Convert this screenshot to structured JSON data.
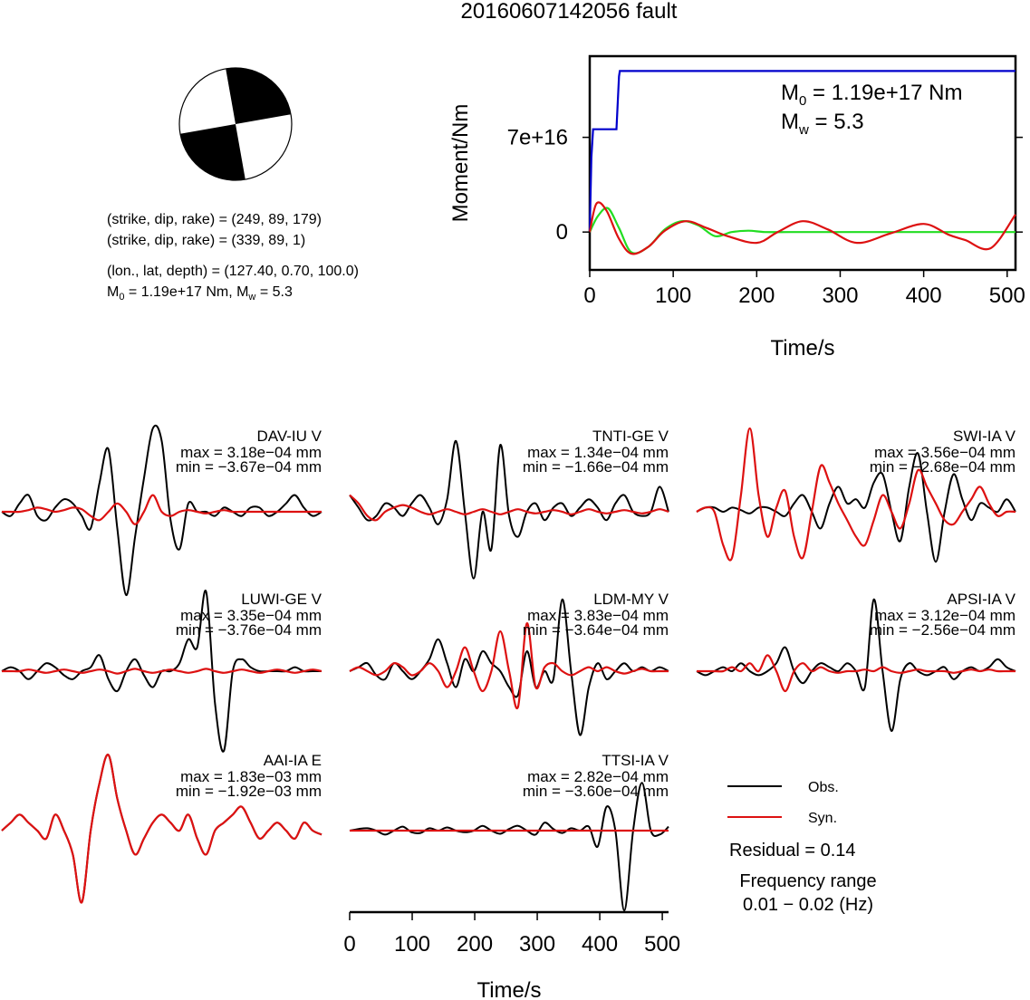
{
  "title": "20160607142056 fault",
  "mechanism": {
    "line1": "(strike, dip, rake) = (249, 89, 179)",
    "line2": "(strike, dip, rake) = (339, 89, 1)",
    "line3": "(lon., lat, depth) = (127.40, 0.70, 100.0)",
    "line4_m0": "M",
    "line4_m0_sub": "0",
    "line4_rest1": " = 1.19e+17 Nm, M",
    "line4_mw_sub": "w",
    "line4_rest2": " = 5.3"
  },
  "moment_plot": {
    "m0_prefix": "M",
    "m0_sub": "0",
    "m0_value": " = 1.19e+17 Nm",
    "mw_prefix": "M",
    "mw_sub": "w",
    "mw_value": " = 5.3"
  },
  "legend": {
    "obs": "Obs.",
    "syn": "Syn.",
    "residual": "Residual = 0.14",
    "freq_label": "Frequency range",
    "freq_value": "0.01 − 0.02 (Hz)"
  },
  "colors": {
    "observed": "#000000",
    "synthetic": "#dd1111",
    "moment_cumulative": "#0000cc",
    "moment_rate_green": "#22dd22",
    "moment_rate_red": "#dd1111"
  },
  "chart_data": [
    {
      "type": "line",
      "name": "moment_function",
      "xlabel": "Time/s",
      "ylabel": "Moment/Nm",
      "xlim": [
        0,
        510
      ],
      "ylim": [
        -2.8e+16,
        1.3e+17
      ],
      "x_ticks": [
        "0",
        "100",
        "200",
        "300",
        "400",
        "500"
      ],
      "x_tick_values": [
        0,
        100,
        200,
        300,
        400,
        500
      ],
      "y_ticks": [
        "0",
        "7e+16"
      ],
      "y_tick_values": [
        0,
        7e+16
      ],
      "series": [
        {
          "color": "#0000cc",
          "x": [
            0,
            2,
            4,
            32,
            35,
            36,
            510
          ],
          "y": [
            0,
            5.5e+16,
            7.6e+16,
            7.6e+16,
            1.15e+17,
            1.19e+17,
            1.19e+17
          ]
        },
        {
          "color": "#22dd22",
          "x": [
            0,
            10,
            22,
            35,
            50,
            70,
            90,
            110,
            130,
            150,
            170,
            190,
            210,
            240,
            280,
            510
          ],
          "y": [
            0,
            1.2e+16,
            1.75e+16,
            3000000000000000.0,
            -1.5e+16,
            -1.1e+16,
            2000000000000000.0,
            8000000000000000.0,
            5000000000000000.0,
            -3000000000000000.0,
            0.0,
            1000000000000000.0,
            0.0,
            0.0,
            0.0,
            0.0
          ]
        },
        {
          "color": "#dd1111",
          "x": [
            0,
            8,
            20,
            35,
            50,
            70,
            90,
            115,
            140,
            165,
            200,
            225,
            255,
            285,
            320,
            360,
            400,
            430,
            450,
            480,
            510
          ],
          "y": [
            0,
            2.1e+16,
            1.6e+16,
            -5000000000000000.0,
            -1.6e+16,
            -1.1e+16,
            1000000000000000.0,
            8000000000000000.0,
            3000000000000000.0,
            -3000000000000000.0,
            -8000000000000000.0,
            0.0,
            8000000000000000.0,
            2000000000000000.0,
            -8000000000000000.0,
            -1000000000000000.0,
            6000000000000000.0,
            -2000000000000000.0,
            -6000000000000000.0,
            -1.2e+16,
            1.3e+16
          ]
        }
      ]
    },
    {
      "type": "line",
      "name": "waveforms",
      "xlabel": "Time/s",
      "xlim": [
        0,
        510
      ],
      "x_ticks": [
        "0",
        "100",
        "200",
        "300",
        "400",
        "500"
      ],
      "x_tick_values": [
        0,
        100,
        200,
        300,
        400,
        500
      ],
      "panels": [
        {
          "label": "DAV-IU V",
          "max": "max = 3.18e−04 mm",
          "min": "min = −3.67e−04 mm",
          "obs": [
            0,
            -0.05,
            0.1,
            0.2,
            -0.05,
            -0.1,
            0.05,
            0.15,
            0.1,
            -0.05,
            -0.2,
            0.35,
            0.75,
            -0.2,
            -1.0,
            -0.3,
            0.4,
            1.0,
            0.85,
            -0.1,
            -0.45,
            0.1,
            0.0,
            0.0,
            -0.05,
            0.05,
            0.0,
            -0.05,
            0.05,
            0.05,
            -0.05,
            0.0,
            0.1,
            0.2,
            0.05,
            -0.05,
            0.0
          ],
          "syn": [
            0,
            0.0,
            0.0,
            0.02,
            0.05,
            0.03,
            0.0,
            0.02,
            0.05,
            0.03,
            -0.05,
            -0.1,
            0.0,
            0.1,
            0.0,
            -0.15,
            0.0,
            0.2,
            0.0,
            -0.05,
            0.0,
            0.02,
            0.0,
            -0.02,
            0.0,
            0.02,
            0.0,
            0.0,
            0.0,
            0.0,
            0.0,
            0.0,
            0.0,
            0.0,
            0.0,
            0.0,
            0.0
          ]
        },
        {
          "label": "TNTI-GE V",
          "max": "max = 1.34e−04 mm",
          "min": "min = −1.66e−04 mm",
          "obs": [
            0.2,
            0.05,
            -0.1,
            -0.05,
            0.1,
            0.05,
            -0.05,
            0.1,
            0.2,
            0.05,
            -0.15,
            0.15,
            0.85,
            0.0,
            -0.8,
            0.0,
            -0.45,
            0.8,
            -0.05,
            -0.3,
            0.0,
            0.1,
            -0.1,
            0.05,
            0.1,
            -0.05,
            0.05,
            0.15,
            0.05,
            -0.1,
            0.1,
            0.2,
            0.0,
            -0.05,
            0.0,
            0.3,
            0.0
          ],
          "syn": [
            0.2,
            0.1,
            -0.05,
            -0.1,
            0.0,
            0.05,
            0.08,
            0.05,
            0.0,
            -0.03,
            0.0,
            0.03,
            0.0,
            -0.03,
            0.0,
            0.03,
            0.0,
            -0.03,
            0.0,
            0.03,
            0.0,
            -0.02,
            0.0,
            0.02,
            0.0,
            -0.03,
            0.0,
            0.03,
            0.0,
            -0.02,
            0.0,
            0.02,
            0.0,
            -0.02,
            0.0,
            0.03,
            0.0
          ]
        },
        {
          "label": "SWI-IA V",
          "max": "max = 3.56e−04 mm",
          "min": "min = −2.68e−04 mm",
          "obs": [
            0.0,
            0.05,
            0.05,
            0.0,
            0.05,
            0.02,
            -0.02,
            0.05,
            0.05,
            0.0,
            -0.05,
            0.1,
            0.2,
            0.0,
            -0.2,
            0.1,
            0.3,
            0.1,
            0.15,
            0.05,
            0.35,
            0.45,
            0.0,
            -0.35,
            0.3,
            0.7,
            0.0,
            -0.6,
            0.0,
            0.45,
            0.15,
            -0.1,
            0.1,
            0.05,
            0.0,
            0.15,
            0.0
          ],
          "syn": [
            0.0,
            0.05,
            0.0,
            -0.4,
            -0.55,
            0.2,
            1.0,
            0.2,
            -0.3,
            0.05,
            0.25,
            -0.3,
            -0.55,
            0.0,
            0.55,
            0.35,
            0.1,
            -0.1,
            -0.3,
            -0.4,
            -0.1,
            0.2,
            0.0,
            -0.2,
            0.1,
            0.5,
            0.3,
            0.1,
            -0.1,
            -0.15,
            0.0,
            0.15,
            0.3,
            0.1,
            -0.05,
            0.0,
            0.0
          ]
        },
        {
          "label": "LUWI-GE V",
          "max": "max = 3.35e−04 mm",
          "min": "min = −3.76e−04 mm",
          "obs": [
            0.0,
            0.05,
            0.0,
            -0.1,
            0.0,
            0.1,
            0.05,
            -0.05,
            -0.1,
            0.0,
            0.05,
            0.2,
            -0.1,
            -0.25,
            0.0,
            0.15,
            -0.05,
            -0.2,
            0.0,
            0.0,
            0.1,
            0.4,
            0.3,
            1.0,
            -0.4,
            -1.0,
            0.0,
            0.15,
            0.05,
            0.0,
            0.0,
            0.0,
            0.0,
            0.05,
            0.0,
            0.0,
            0.0
          ],
          "syn": [
            0.0,
            0.0,
            0.0,
            0.02,
            0.0,
            -0.02,
            0.0,
            0.02,
            0.0,
            -0.02,
            0.0,
            0.02,
            0.0,
            -0.03,
            0.0,
            0.03,
            0.0,
            -0.02,
            0.0,
            0.02,
            0.0,
            -0.02,
            0.0,
            0.03,
            0.0,
            -0.02,
            0.0,
            0.02,
            0.0,
            -0.02,
            0.0,
            0.02,
            0.0,
            -0.02,
            0.0,
            0.02,
            0.0
          ]
        },
        {
          "label": "LDM-MY V",
          "max": "max = 3.83e−04 mm",
          "min": "min = −3.64e−04 mm",
          "obs": [
            0.0,
            0.05,
            0.1,
            -0.05,
            -0.1,
            0.1,
            0.0,
            -0.1,
            0.0,
            0.15,
            0.4,
            0.1,
            -0.2,
            0.15,
            0.0,
            0.25,
            0.1,
            0.0,
            -0.2,
            -0.3,
            0.25,
            -0.2,
            0.0,
            -0.1,
            0.9,
            0.0,
            -0.8,
            -0.2,
            0.1,
            -0.1,
            0.0,
            0.1,
            0.0,
            0.05,
            0.0,
            0.05,
            0.0
          ],
          "syn": [
            0.0,
            0.05,
            0.0,
            -0.05,
            0.0,
            0.1,
            0.05,
            -0.05,
            0.0,
            0.1,
            0.0,
            -0.2,
            0.0,
            0.3,
            0.0,
            -0.25,
            0.0,
            0.5,
            0.0,
            -0.45,
            0.6,
            -0.2,
            0.05,
            0.1,
            0.0,
            -0.05,
            0.0,
            0.05,
            0.0,
            0.05,
            0.0,
            -0.03,
            0.0,
            0.03,
            0.0,
            0.0,
            0.0
          ]
        },
        {
          "label": "APSI-IA V",
          "max": "max = 3.12e−04 mm",
          "min": "min = −2.56e−04 mm",
          "obs": [
            0.0,
            -0.05,
            0.0,
            0.05,
            0.0,
            0.1,
            0.0,
            -0.05,
            0.0,
            0.1,
            0.3,
            0.0,
            -0.15,
            0.0,
            0.1,
            0.05,
            0.0,
            0.1,
            0.0,
            -0.2,
            0.9,
            0.0,
            -0.75,
            -0.1,
            0.1,
            0.0,
            -0.05,
            0.0,
            0.05,
            -0.1,
            0.0,
            0.05,
            0.0,
            0.05,
            0.15,
            0.05,
            0.0
          ],
          "syn": [
            0.0,
            0.0,
            0.0,
            0.0,
            0.05,
            0.0,
            0.1,
            0.0,
            0.2,
            0.0,
            -0.25,
            0.0,
            0.1,
            0.0,
            0.05,
            0.0,
            -0.02,
            0.0,
            0.0,
            0.02,
            0.0,
            0.05,
            0.0,
            -0.02,
            0.0,
            0.02,
            0.0,
            0.0,
            0.0,
            -0.02,
            0.0,
            0.02,
            0.0,
            0.02,
            0.0,
            0.0,
            0.0
          ]
        },
        {
          "label": "AAI-IA E",
          "max": "max = 1.83e−03 mm",
          "min": "min = −1.92e−03 mm",
          "obs": [
            0.0,
            0.1,
            0.2,
            0.1,
            0.0,
            -0.1,
            0.2,
            0.0,
            -0.3,
            -0.9,
            0.0,
            0.6,
            0.95,
            0.4,
            0.0,
            -0.3,
            -0.1,
            0.1,
            0.2,
            0.1,
            0.0,
            0.2,
            -0.1,
            -0.3,
            0.0,
            0.1,
            0.2,
            0.3,
            0.1,
            -0.1,
            0.0,
            0.1,
            0.0,
            -0.1,
            0.1,
            0.0,
            -0.05
          ],
          "syn": [
            0.0,
            0.1,
            0.2,
            0.1,
            0.0,
            -0.1,
            0.2,
            0.0,
            -0.3,
            -0.9,
            0.0,
            0.6,
            0.95,
            0.4,
            0.0,
            -0.3,
            -0.1,
            0.1,
            0.2,
            0.1,
            0.0,
            0.2,
            -0.1,
            -0.3,
            0.0,
            0.1,
            0.2,
            0.3,
            0.1,
            -0.1,
            0.0,
            0.1,
            0.0,
            -0.1,
            0.1,
            0.0,
            -0.05
          ]
        },
        {
          "label": "TTSI-IA V",
          "max": "max = 2.82e−04 mm",
          "min": "min = −3.60e−04 mm",
          "obs": [
            0.0,
            0.02,
            0.03,
            0.0,
            -0.05,
            0.0,
            0.05,
            -0.02,
            -0.03,
            0.03,
            0.0,
            0.04,
            0.0,
            -0.02,
            0.0,
            0.06,
            0.0,
            -0.04,
            0.02,
            0.06,
            0.0,
            -0.05,
            0.1,
            0.02,
            -0.03,
            0.03,
            0.0,
            0.05,
            -0.2,
            0.3,
            0.0,
            -1.0,
            0.0,
            0.6,
            0.0,
            -0.05,
            0.05
          ],
          "syn": [
            0.0,
            0.0,
            0.0,
            0.0,
            0.0,
            0.0,
            0.0,
            0.0,
            0.0,
            0.0,
            0.0,
            0.0,
            0.0,
            0.0,
            0.0,
            0.0,
            0.0,
            0.0,
            0.0,
            0.0,
            0.0,
            0.0,
            0.0,
            0.0,
            0.0,
            0.0,
            0.0,
            0.0,
            0.0,
            0.0,
            0.0,
            0.0,
            0.0,
            0.0,
            0.0,
            0.0,
            0.0
          ]
        }
      ]
    }
  ]
}
